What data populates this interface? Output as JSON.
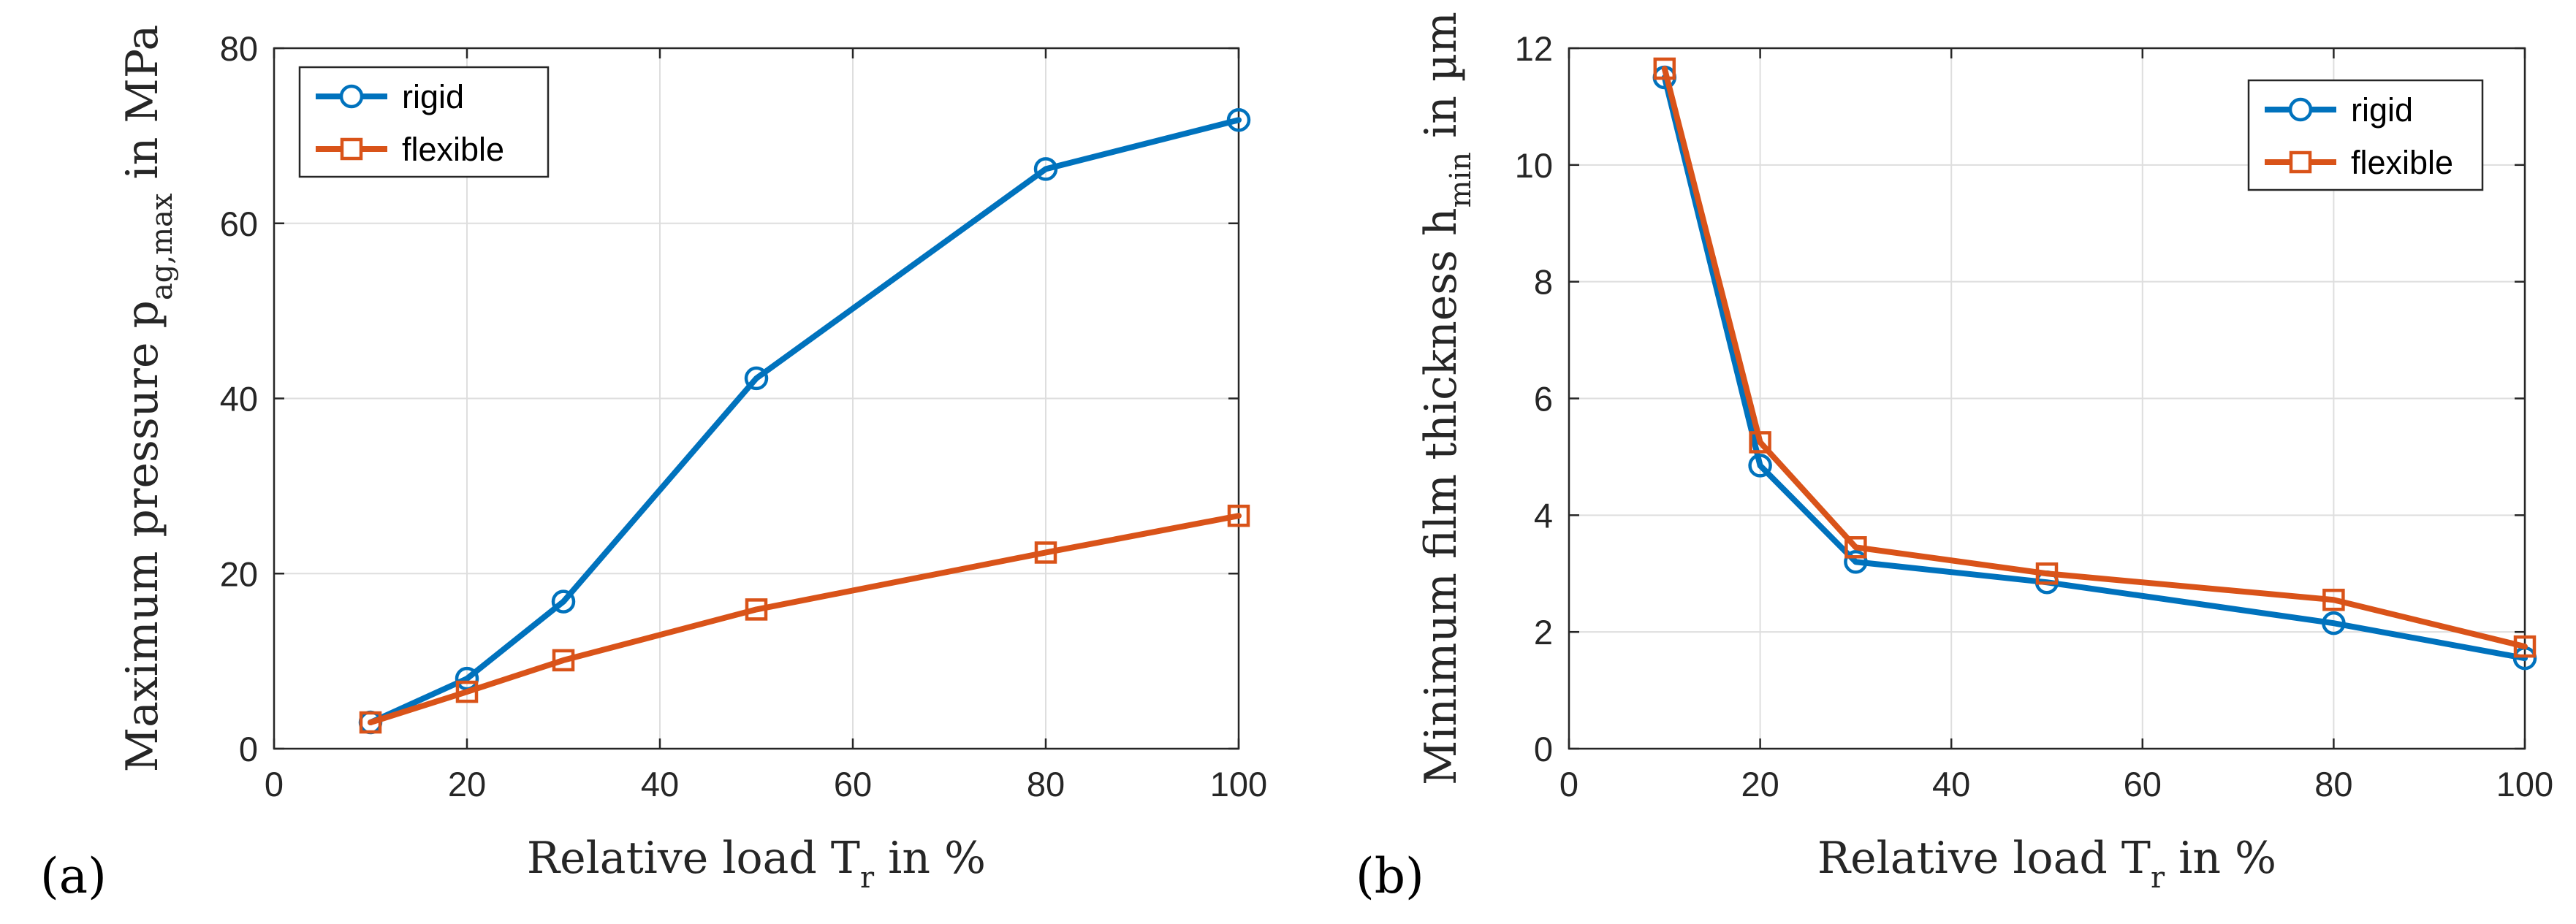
{
  "colors": {
    "rigid": "#0072BD",
    "flexible": "#D95319",
    "axis": "#262626",
    "grid": "#dedede"
  },
  "chart_data": [
    {
      "panel_label": "(a)",
      "type": "line",
      "x": [
        10,
        20,
        30,
        50,
        80,
        100
      ],
      "series": [
        {
          "name": "rigid",
          "marker": "circle",
          "values": [
            3,
            8,
            16.8,
            42.3,
            66.2,
            71.8
          ]
        },
        {
          "name": "flexible",
          "marker": "square",
          "values": [
            3,
            6.5,
            10.1,
            15.9,
            22.4,
            26.6
          ]
        }
      ],
      "xlabel": {
        "main": "Relative load T",
        "sub": "r",
        "tail": " in %"
      },
      "ylabel": {
        "main": "Maximum pressure p",
        "sub": "ag,max",
        "tail": " in MPa"
      },
      "xlim": [
        0,
        100
      ],
      "ylim": [
        0,
        80
      ],
      "xticks": [
        "0",
        "20",
        "40",
        "60",
        "80",
        "100"
      ],
      "yticks": [
        "0",
        "20",
        "40",
        "60",
        "80"
      ],
      "xtick_values": [
        0,
        20,
        40,
        60,
        80,
        100
      ],
      "ytick_values": [
        0,
        20,
        40,
        60,
        80
      ],
      "grid": true,
      "legend_position": "top-left"
    },
    {
      "panel_label": "(b)",
      "type": "line",
      "x": [
        10,
        20,
        30,
        50,
        80,
        100
      ],
      "series": [
        {
          "name": "rigid",
          "marker": "circle",
          "values": [
            11.5,
            4.85,
            3.2,
            2.85,
            2.15,
            1.55
          ]
        },
        {
          "name": "flexible",
          "marker": "square",
          "values": [
            11.65,
            5.25,
            3.45,
            3.0,
            2.55,
            1.75
          ]
        }
      ],
      "xlabel": {
        "main": "Relative load T",
        "sub": "r",
        "tail": " in %"
      },
      "ylabel": {
        "main": "Minimum film thickness h",
        "sub": "min",
        "tail": " in µm"
      },
      "xlim": [
        0,
        100
      ],
      "ylim": [
        0,
        12
      ],
      "xticks": [
        "0",
        "20",
        "40",
        "60",
        "80",
        "100"
      ],
      "yticks": [
        "0",
        "2",
        "4",
        "6",
        "8",
        "10",
        "12"
      ],
      "xtick_values": [
        0,
        20,
        40,
        60,
        80,
        100
      ],
      "ytick_values": [
        0,
        2,
        4,
        6,
        8,
        10,
        12
      ],
      "grid": true,
      "legend_position": "top-right"
    }
  ]
}
